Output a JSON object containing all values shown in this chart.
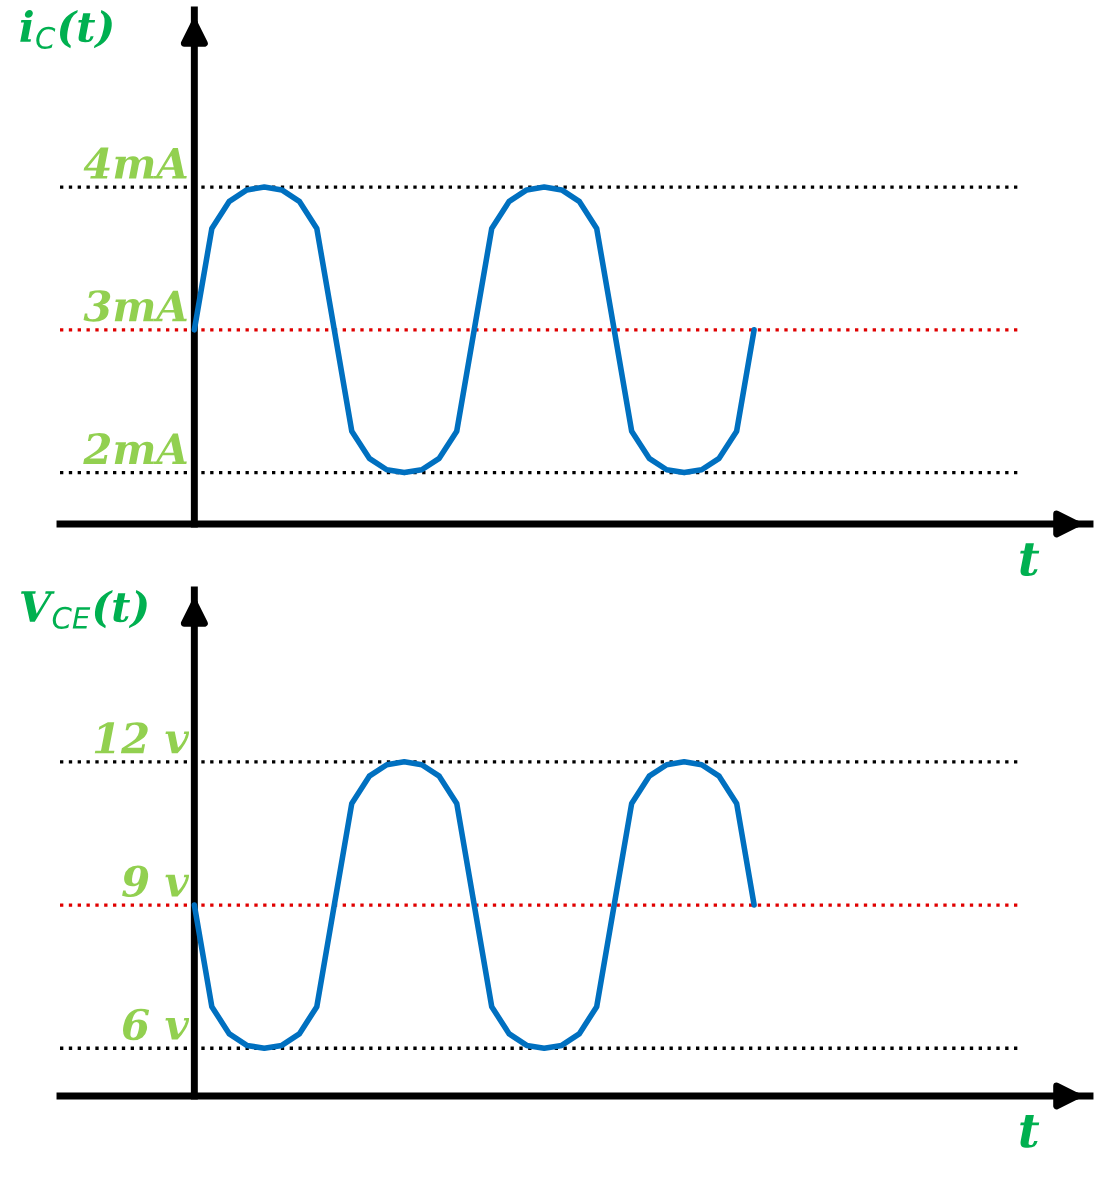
{
  "chart_data": [
    {
      "type": "line",
      "ylabel": "i$_{C}$(t)",
      "xlabel": "t",
      "categories": [
        null,
        null,
        null,
        null,
        null,
        null,
        null,
        null,
        null,
        null,
        null,
        null,
        null,
        null,
        null,
        null,
        null,
        null,
        null,
        null,
        null,
        null,
        null,
        null,
        null,
        null,
        null,
        null,
        null,
        null,
        null,
        null,
        null
      ],
      "series": [
        {
          "color": "#0070c0",
          "values": [
            3,
            3.71,
            3.9,
            3.98,
            4,
            3.98,
            3.9,
            3.71,
            3,
            2.29,
            2.1,
            2.02,
            2,
            2.02,
            2.1,
            2.29,
            3,
            3.71,
            3.9,
            3.98,
            4,
            3.98,
            3.9,
            3.71,
            3,
            2.29,
            2.1,
            2.02,
            2,
            2.02,
            2.1,
            2.29,
            3
          ]
        }
      ],
      "ylim": [
        1.64,
        5.24
      ],
      "yticks": [
        {
          "value": 2,
          "label": "2mA"
        },
        {
          "value": 3,
          "label": "3mA"
        },
        {
          "value": 4,
          "label": "4mA"
        }
      ],
      "tick_labels": "y",
      "marker": "none",
      "line_style": "solid",
      "ref_lines": [
        {
          "axis": "y",
          "value": 4,
          "color": "#000000",
          "line_style": "dotted"
        },
        {
          "axis": "y",
          "value": 3,
          "color": "#e00000",
          "line_style": "dotted"
        },
        {
          "axis": "y",
          "value": 2,
          "color": "#000000",
          "line_style": "dotted"
        }
      ]
    },
    {
      "type": "line",
      "ylabel": "V$_{CE}$(t)",
      "xlabel": "t",
      "categories": [
        null,
        null,
        null,
        null,
        null,
        null,
        null,
        null,
        null,
        null,
        null,
        null,
        null,
        null,
        null,
        null,
        null,
        null,
        null,
        null,
        null,
        null,
        null,
        null,
        null,
        null,
        null,
        null,
        null,
        null,
        null,
        null,
        null
      ],
      "series": [
        {
          "color": "#0070c0",
          "values": [
            9,
            6.87,
            6.3,
            6.06,
            6,
            6.06,
            6.3,
            6.87,
            9,
            11.13,
            11.7,
            11.94,
            12,
            11.94,
            11.7,
            11.13,
            9,
            6.87,
            6.3,
            6.06,
            6,
            6.06,
            6.3,
            6.87,
            9,
            11.13,
            11.7,
            11.94,
            12,
            11.94,
            11.7,
            11.13,
            9
          ]
        }
      ],
      "ylim": [
        5.0,
        15.6
      ],
      "yticks": [
        {
          "value": 6,
          "label": "6 v"
        },
        {
          "value": 9,
          "label": "9 v"
        },
        {
          "value": 12,
          "label": "12 v"
        }
      ],
      "tick_labels": "y",
      "marker": "none",
      "line_style": "solid",
      "ref_lines": [
        {
          "axis": "y",
          "value": 12,
          "color": "#000000",
          "line_style": "dotted"
        },
        {
          "axis": "y",
          "value": 9,
          "color": "#e00000",
          "line_style": "dotted"
        },
        {
          "axis": "y",
          "value": 6,
          "color": "#000000",
          "line_style": "dotted"
        }
      ]
    }
  ]
}
